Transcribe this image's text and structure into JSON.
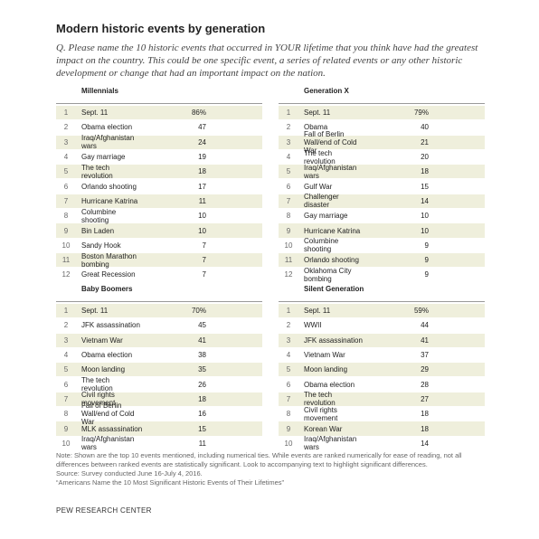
{
  "header": {
    "title": "Modern historic events by generation",
    "question_label": "Q.",
    "question": "Please name the 10 historic events that occurred in YOUR lifetime that you think have had the greatest impact on the country. This could be one specific event, a series of related events or any other historic development or change that had an important impact on the nation."
  },
  "tables": [
    {
      "heading": "Millennials",
      "rows": [
        [
          1,
          "Sept. 11",
          "86%"
        ],
        [
          2,
          "Obama election",
          47
        ],
        [
          3,
          "Iraq/Afghanistan wars",
          24
        ],
        [
          4,
          "Gay marriage",
          19
        ],
        [
          5,
          "The tech revolution",
          18
        ],
        [
          6,
          "Orlando shooting",
          17
        ],
        [
          7,
          "Hurricane Katrina",
          11
        ],
        [
          8,
          "Columbine shooting",
          10
        ],
        [
          9,
          "Bin Laden",
          10
        ],
        [
          10,
          "Sandy Hook",
          7
        ],
        [
          11,
          "Boston Marathon bombing",
          7
        ],
        [
          12,
          "Great Recession",
          7
        ]
      ]
    },
    {
      "heading": "Generation X",
      "rows": [
        [
          1,
          "Sept. 11",
          "79%"
        ],
        [
          2,
          "Obama",
          40
        ],
        [
          3,
          "Fall of Berlin Wall/end of Cold War",
          21
        ],
        [
          4,
          "The tech revolution",
          20
        ],
        [
          5,
          "Iraq/Afghanistan wars",
          18
        ],
        [
          6,
          "Gulf War",
          15
        ],
        [
          7,
          "Challenger disaster",
          14
        ],
        [
          8,
          "Gay marriage",
          10
        ],
        [
          9,
          "Hurricane Katrina",
          10
        ],
        [
          10,
          "Columbine shooting",
          9
        ],
        [
          11,
          "Orlando shooting",
          9
        ],
        [
          12,
          "Oklahoma City bombing",
          9
        ]
      ]
    },
    {
      "heading": "Baby Boomers",
      "rows": [
        [
          1,
          "Sept. 11",
          "70%"
        ],
        [
          2,
          "JFK assassination",
          45
        ],
        [
          3,
          "Vietnam War",
          41
        ],
        [
          4,
          "Obama election",
          38
        ],
        [
          5,
          "Moon landing",
          35
        ],
        [
          6,
          "The tech revolution",
          26
        ],
        [
          7,
          "Civil rights movement",
          18
        ],
        [
          8,
          "Fall of Berlin Wall/end of Cold War",
          16
        ],
        [
          9,
          "MLK assassination",
          15
        ],
        [
          10,
          "Iraq/Afghanistan wars",
          11
        ]
      ]
    },
    {
      "heading": "Silent Generation",
      "rows": [
        [
          1,
          "Sept. 11",
          "59%"
        ],
        [
          2,
          "WWII",
          44
        ],
        [
          3,
          "JFK assassination",
          41
        ],
        [
          4,
          "Vietnam War",
          37
        ],
        [
          5,
          "Moon landing",
          29
        ],
        [
          6,
          "Obama election",
          28
        ],
        [
          7,
          "The tech revolution",
          27
        ],
        [
          8,
          "Civil rights movement",
          18
        ],
        [
          9,
          "Korean War",
          18
        ],
        [
          10,
          "Iraq/Afghanistan wars",
          14
        ]
      ]
    }
  ],
  "notes": [
    "Note: Shown are the top 10 events mentioned, including numerical ties. While events are ranked numerically for ease of reading, not all differences between ranked events are statistically significant. Look to accompanying text to highlight significant differences.",
    "Source: Survey conducted June 16-July 4, 2016.",
    "“Americans Name the 10 Most Significant Historic Events of Their Lifetimes”"
  ],
  "footer": "PEW RESEARCH CENTER"
}
